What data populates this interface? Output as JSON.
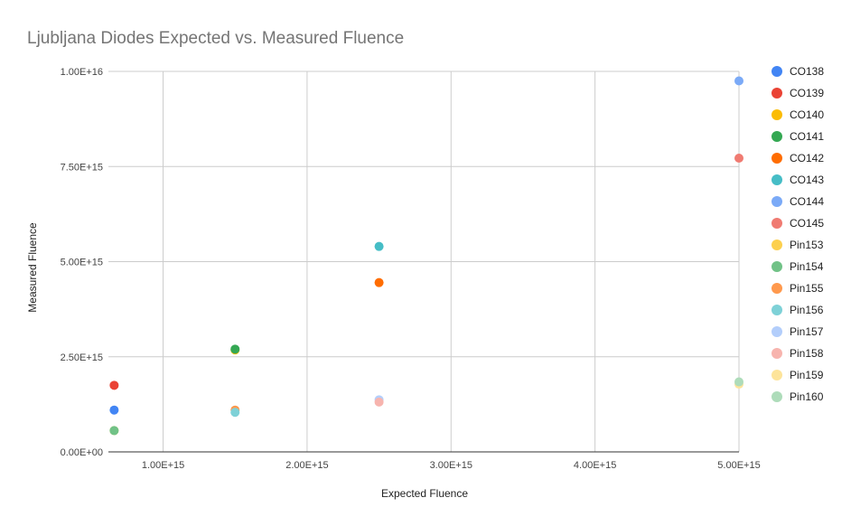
{
  "chart_data": {
    "type": "scatter",
    "title": "Ljubljana Diodes Expected vs. Measured Fluence",
    "xlabel": "Expected Fluence",
    "ylabel": "Measured Fluence",
    "xlim": [
      620000000000000.0,
      5000000000000000.0
    ],
    "ylim": [
      0,
      1e+16
    ],
    "x_ticks": [
      {
        "value": 1000000000000000.0,
        "label": "1.00E+15"
      },
      {
        "value": 2000000000000000.0,
        "label": "2.00E+15"
      },
      {
        "value": 3000000000000000.0,
        "label": "3.00E+15"
      },
      {
        "value": 4000000000000000.0,
        "label": "4.00E+15"
      },
      {
        "value": 5000000000000000.0,
        "label": "5.00E+15"
      }
    ],
    "y_ticks": [
      {
        "value": 0,
        "label": "0.00E+00"
      },
      {
        "value": 2500000000000000.0,
        "label": "2.50E+15"
      },
      {
        "value": 5000000000000000.0,
        "label": "5.00E+15"
      },
      {
        "value": 7500000000000000.0,
        "label": "7.50E+15"
      },
      {
        "value": 1e+16,
        "label": "1.00E+16"
      }
    ],
    "grid": true,
    "legend_position": "right",
    "series": [
      {
        "name": "CO138",
        "color": "#4285f4",
        "points": [
          {
            "x": 660000000000000.0,
            "y": 1100000000000000.0
          }
        ]
      },
      {
        "name": "CO139",
        "color": "#ea4335",
        "points": [
          {
            "x": 660000000000000.0,
            "y": 1750000000000000.0
          }
        ]
      },
      {
        "name": "CO140",
        "color": "#fbbc04",
        "points": [
          {
            "x": 1500000000000000.0,
            "y": 2680000000000000.0
          }
        ]
      },
      {
        "name": "CO141",
        "color": "#34a853",
        "points": [
          {
            "x": 1500000000000000.0,
            "y": 2700000000000000.0
          }
        ]
      },
      {
        "name": "CO142",
        "color": "#ff6d01",
        "points": [
          {
            "x": 2500000000000000.0,
            "y": 4450000000000000.0
          }
        ]
      },
      {
        "name": "CO143",
        "color": "#46bdc6",
        "points": [
          {
            "x": 2500000000000000.0,
            "y": 5400000000000000.0
          }
        ]
      },
      {
        "name": "CO144",
        "color": "#7baaf7",
        "points": [
          {
            "x": 5000000000000000.0,
            "y": 9750000000000000.0
          }
        ]
      },
      {
        "name": "CO145",
        "color": "#f07b72",
        "points": [
          {
            "x": 5000000000000000.0,
            "y": 7720000000000000.0
          }
        ]
      },
      {
        "name": "Pin153",
        "color": "#fcd04f",
        "points": [
          {
            "x": 660000000000000.0,
            "y": 560000000000000.0
          }
        ]
      },
      {
        "name": "Pin154",
        "color": "#71c287",
        "points": [
          {
            "x": 660000000000000.0,
            "y": 560000000000000.0
          }
        ]
      },
      {
        "name": "Pin155",
        "color": "#ff994d",
        "points": [
          {
            "x": 1500000000000000.0,
            "y": 1100000000000000.0
          }
        ]
      },
      {
        "name": "Pin156",
        "color": "#7ed1d7",
        "points": [
          {
            "x": 1500000000000000.0,
            "y": 1040000000000000.0
          }
        ]
      },
      {
        "name": "Pin157",
        "color": "#b3cefb",
        "points": [
          {
            "x": 2500000000000000.0,
            "y": 1370000000000000.0
          }
        ]
      },
      {
        "name": "Pin158",
        "color": "#f7b4ae",
        "points": [
          {
            "x": 2500000000000000.0,
            "y": 1310000000000000.0
          }
        ]
      },
      {
        "name": "Pin159",
        "color": "#fde49b",
        "points": [
          {
            "x": 5000000000000000.0,
            "y": 1780000000000000.0
          }
        ]
      },
      {
        "name": "Pin160",
        "color": "#aedcba",
        "points": [
          {
            "x": 5000000000000000.0,
            "y": 1840000000000000.0
          }
        ]
      }
    ]
  }
}
